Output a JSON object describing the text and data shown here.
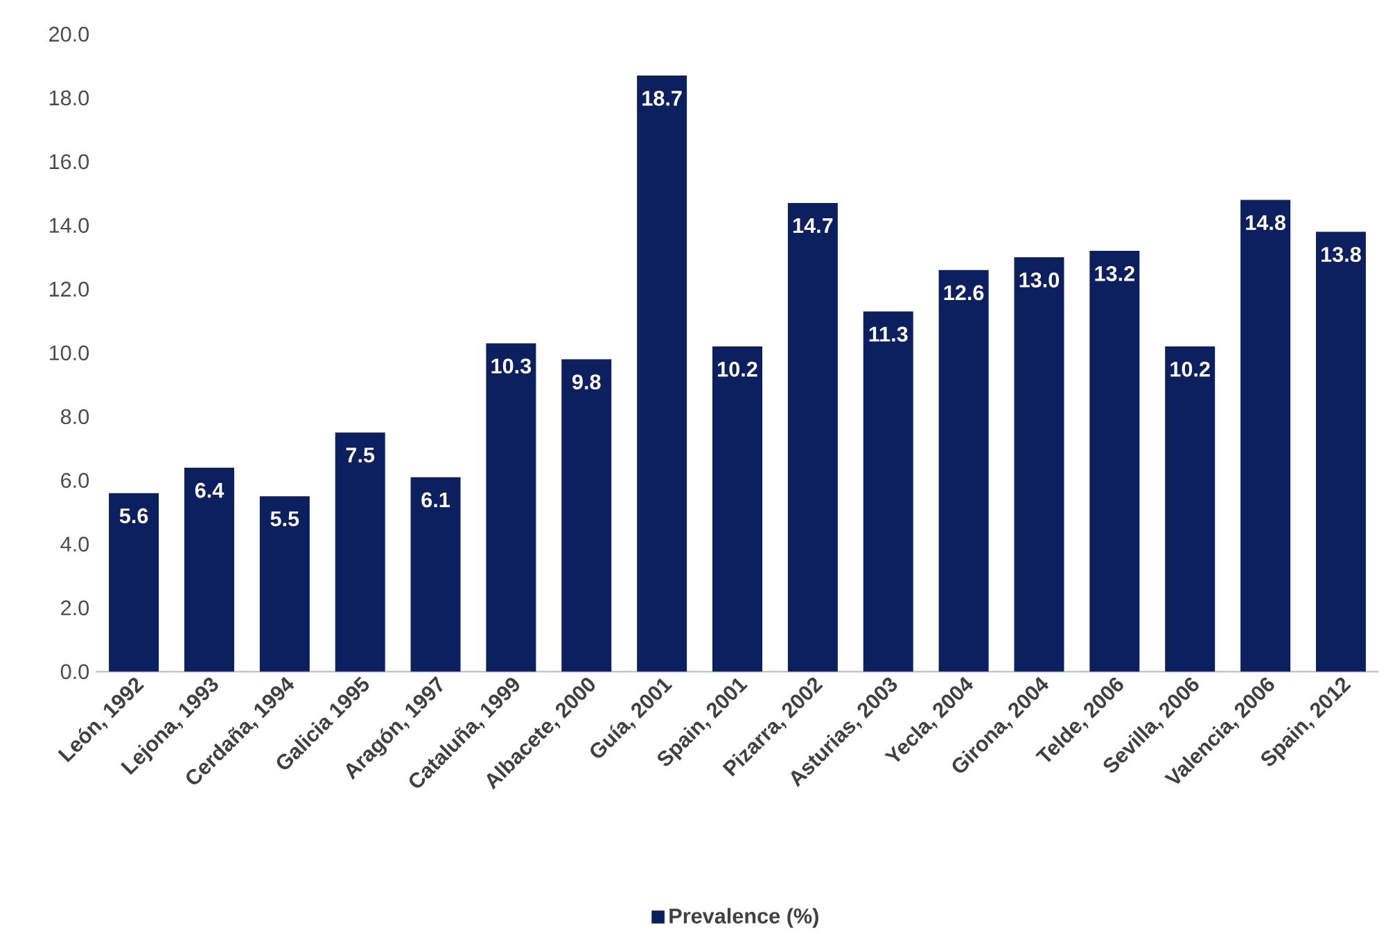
{
  "chart_data": {
    "type": "bar",
    "categories": [
      "León, 1992",
      "Lejona, 1993",
      "Cerdaña, 1994",
      "Galicia 1995",
      "Aragón, 1997",
      "Cataluña, 1999",
      "Albacete, 2000",
      "Guía, 2001",
      "Spain, 2001",
      "Pizarra, 2002",
      "Asturias, 2003",
      "Yecla, 2004",
      "Girona, 2004",
      "Telde, 2006",
      "Sevilla, 2006",
      "Valencia, 2006",
      "Spain, 2012"
    ],
    "series": [
      {
        "name": "Prevalence (%)",
        "color": "#0c1f5e",
        "values": [
          5.6,
          6.4,
          5.5,
          7.5,
          6.1,
          10.3,
          9.8,
          18.7,
          10.2,
          14.7,
          11.3,
          12.6,
          13.0,
          13.2,
          10.2,
          14.8,
          13.8
        ],
        "value_labels": [
          "5.6",
          "6.4",
          "5.5",
          "7.5",
          "6.1",
          "10.3",
          "9.8",
          "18.7",
          "10.2",
          "14.7",
          "11.3",
          "12.6",
          "13.0",
          "13.2",
          "10.2",
          "14.8",
          "13.8"
        ]
      }
    ],
    "ylim": [
      0,
      20
    ],
    "yticks": [
      {
        "value": 0,
        "label": "0.0"
      },
      {
        "value": 2,
        "label": "2.0"
      },
      {
        "value": 4,
        "label": "4.0"
      },
      {
        "value": 6,
        "label": "6.0"
      },
      {
        "value": 8,
        "label": "8.0"
      },
      {
        "value": 10,
        "label": "10.0"
      },
      {
        "value": 12,
        "label": "12.0"
      },
      {
        "value": 14,
        "label": "14.0"
      },
      {
        "value": 16,
        "label": "16.0"
      },
      {
        "value": 18,
        "label": "18.0"
      },
      {
        "value": 20,
        "label": "20.0"
      }
    ],
    "legend": "bottom"
  }
}
